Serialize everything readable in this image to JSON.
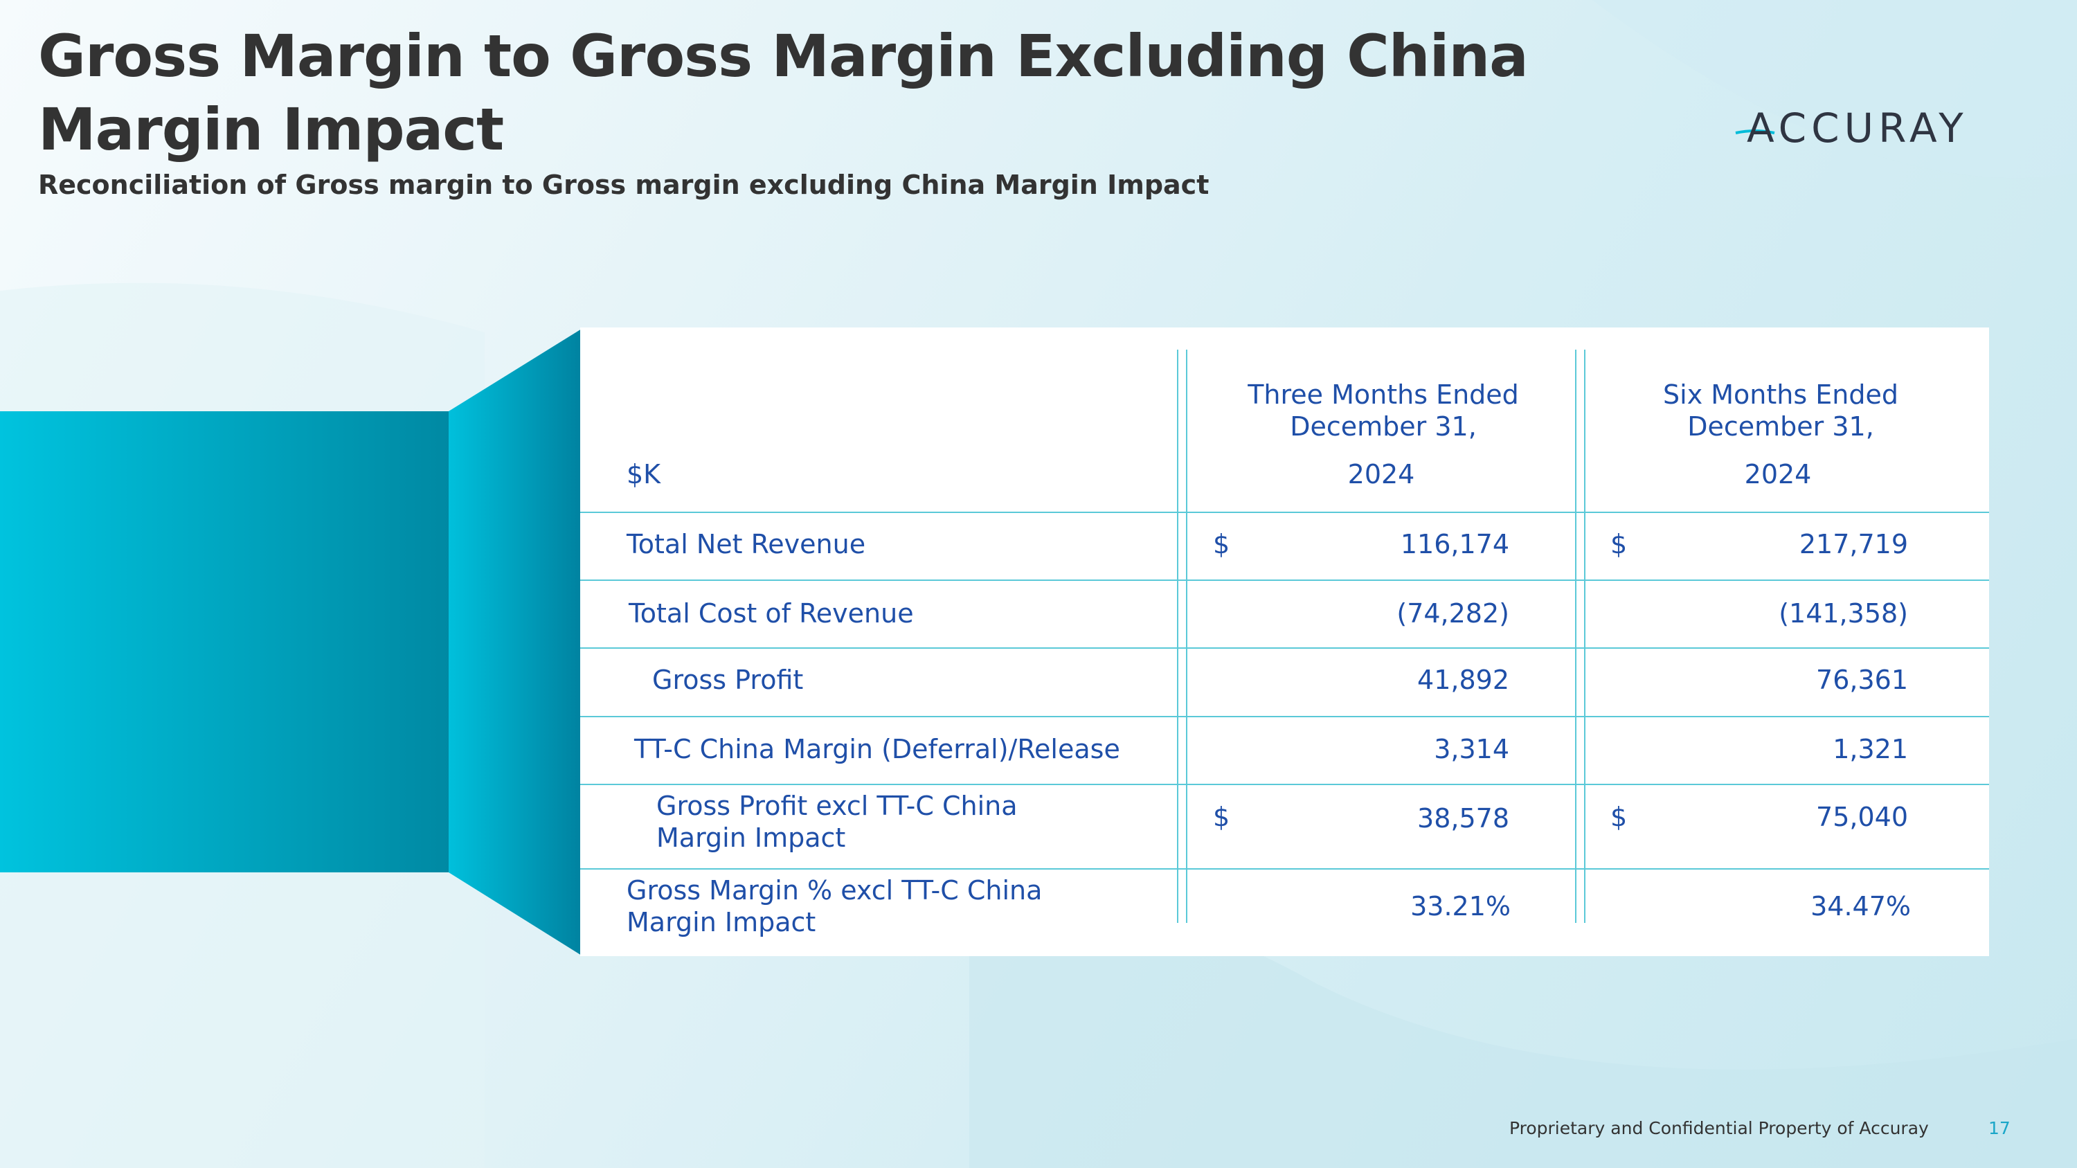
{
  "header": {
    "title": "Gross Margin to Gross Margin Excluding China Margin Impact",
    "subtitle": "Reconciliation of Gross margin to Gross margin excluding China Margin Impact",
    "logo_text": "ACCURAY"
  },
  "table": {
    "unit_label": "$K",
    "columns": [
      {
        "line1": "Three Months Ended",
        "line2": "December 31,",
        "year": "2024"
      },
      {
        "line1": "Six Months Ended",
        "line2": "December 31,",
        "year": "2024"
      }
    ],
    "rows": [
      {
        "label": "Total Net Revenue",
        "label2": "",
        "cur1": "$",
        "val1": "116,174",
        "cur2": "$",
        "val2": "217,719"
      },
      {
        "label": "Total Cost of Revenue",
        "label2": "",
        "cur1": "",
        "val1": "(74,282)",
        "cur2": "",
        "val2": "(141,358)"
      },
      {
        "label": "Gross Profit",
        "label2": "",
        "cur1": "",
        "val1": "41,892",
        "cur2": "",
        "val2": "76,361"
      },
      {
        "label": "TT-C China Margin (Deferral)/Release",
        "label2": "",
        "cur1": "",
        "val1": "3,314",
        "cur2": "",
        "val2": "1,321"
      },
      {
        "label": "Gross Profit excl TT-C China",
        "label2": "Margin Impact",
        "cur1": "$",
        "val1": "38,578",
        "cur2": "$",
        "val2": "75,040"
      },
      {
        "label": "Gross Margin % excl TT-C China",
        "label2": "Margin Impact",
        "cur1": "",
        "val1": "33.21%",
        "cur2": "",
        "val2": "34.47%"
      }
    ]
  },
  "footer": {
    "text": "Proprietary and Confidential Property of Accuray",
    "page_number": "17"
  },
  "colors": {
    "title": "#333333",
    "table_text": "#1f4fa8",
    "rule": "#5bc9d8",
    "accent": "#00bcd9"
  }
}
